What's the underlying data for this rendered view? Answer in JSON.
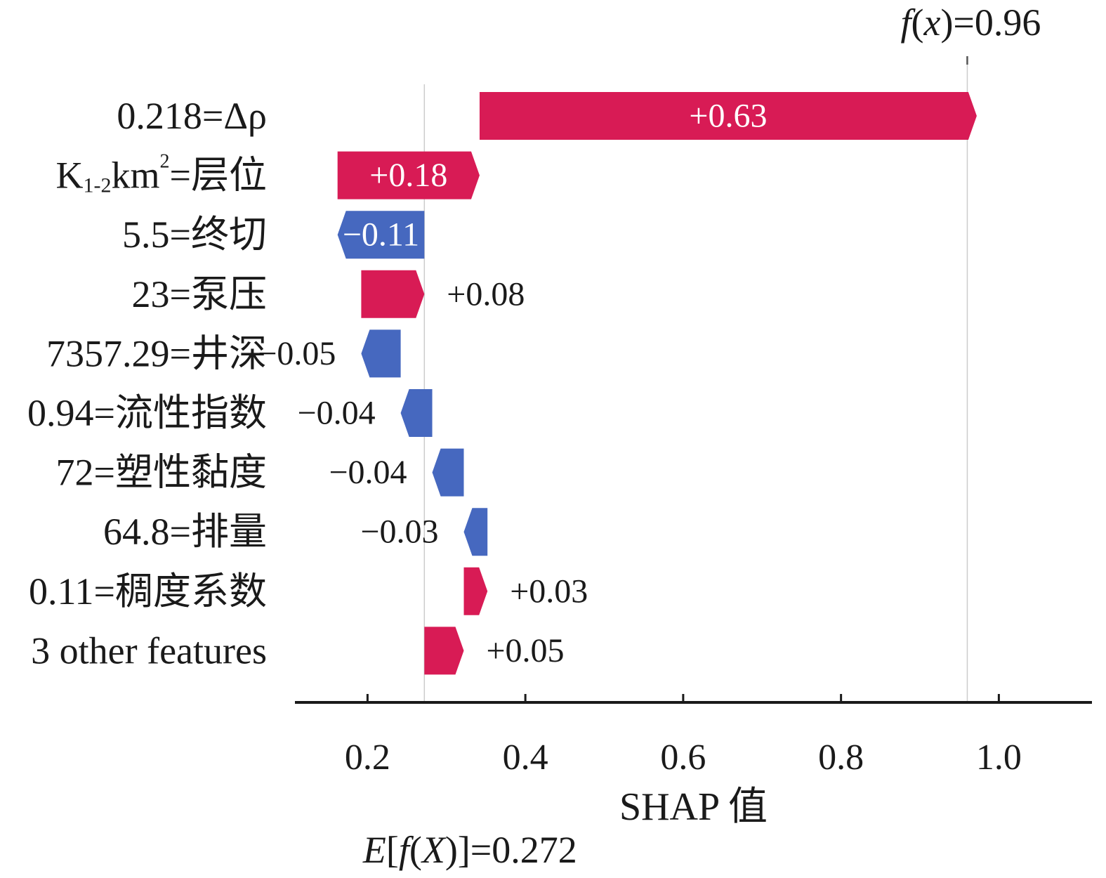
{
  "chart_data": {
    "type": "waterfall",
    "xlabel": "SHAP 值",
    "base_value": 0.272,
    "base_label_parts": [
      "E",
      "[",
      "f",
      "(",
      "X",
      ")]=0.272"
    ],
    "output_value": 0.96,
    "output_label_parts": [
      "f",
      "(",
      "x",
      ")=0.96"
    ],
    "xlim": [
      0.108,
      1.118
    ],
    "xticks": [
      0.2,
      0.4,
      0.6,
      0.8,
      1.0
    ],
    "xtick_labels": [
      "0.2",
      "0.4",
      "0.6",
      "0.8",
      "1.0"
    ],
    "features": [
      {
        "label": "0.218=Δρ",
        "value": 0.63,
        "text": "+0.63"
      },
      {
        "label_parts": [
          "K",
          "1-2",
          "km",
          "2",
          "=层位"
        ],
        "value": 0.18,
        "text": "+0.18"
      },
      {
        "label": "5.5=终切",
        "value": -0.11,
        "text": "−0.11"
      },
      {
        "label": "23=泵压",
        "value": 0.08,
        "text": "+0.08"
      },
      {
        "label": "7357.29=井深",
        "value": -0.05,
        "text": "−0.05"
      },
      {
        "label": "0.94=流性指数",
        "value": -0.04,
        "text": "−0.04"
      },
      {
        "label": "72=塑性黏度",
        "value": -0.04,
        "text": "−0.04"
      },
      {
        "label": "64.8=排量",
        "value": -0.03,
        "text": "−0.03"
      },
      {
        "label": "0.11=稠度系数",
        "value": 0.03,
        "text": "+0.03"
      },
      {
        "label": "3 other features",
        "value": 0.05,
        "text": "+0.05"
      }
    ],
    "colors": {
      "positive": "#d81b55",
      "negative": "#4668bf",
      "positive_edge": "#ff0051",
      "negative_edge": "#1e88e5"
    }
  }
}
